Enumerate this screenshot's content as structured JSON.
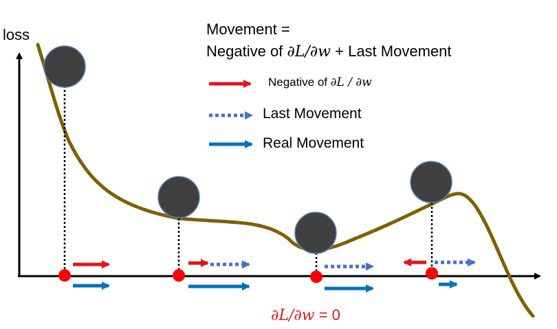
{
  "axis": {
    "y_label": "loss"
  },
  "formula": {
    "line1": "Movement =",
    "line2_prefix": "Negative of ",
    "line2_math": "∂L/∂w",
    "line2_suffix": " + Last Movement"
  },
  "legend": [
    {
      "prefix": "Negative of ",
      "math": "∂L / ∂w",
      "style": "solid",
      "color": "#e0161b"
    },
    {
      "label": "Last Movement",
      "style": "dotted",
      "color": "#4472c4"
    },
    {
      "label": "Real Movement",
      "style": "solid",
      "color": "#0070c0"
    }
  ],
  "zero_gradient": {
    "math": "∂L/∂w",
    "suffix": " = 0",
    "color": "#e0161b"
  },
  "colors": {
    "curve": "#7f6000",
    "ball": "#404040",
    "ball_stroke": "#5b7fb4",
    "axis": "#000000",
    "point": "#ff0000"
  }
}
